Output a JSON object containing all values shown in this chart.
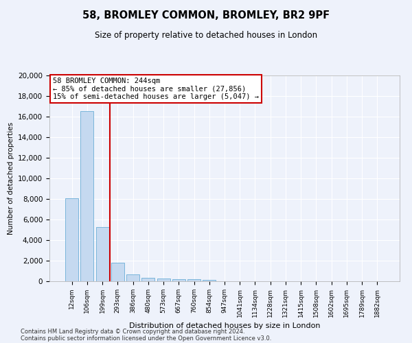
{
  "title": "58, BROMLEY COMMON, BROMLEY, BR2 9PF",
  "subtitle": "Size of property relative to detached houses in London",
  "xlabel": "Distribution of detached houses by size in London",
  "ylabel": "Number of detached properties",
  "bar_color": "#c5d9f0",
  "bar_edge_color": "#6baed6",
  "vline_color": "#cc0000",
  "vline_x_index": 2.5,
  "categories": [
    "12sqm",
    "106sqm",
    "199sqm",
    "293sqm",
    "386sqm",
    "480sqm",
    "573sqm",
    "667sqm",
    "760sqm",
    "854sqm",
    "947sqm",
    "1041sqm",
    "1134sqm",
    "1228sqm",
    "1321sqm",
    "1415sqm",
    "1508sqm",
    "1602sqm",
    "1695sqm",
    "1789sqm",
    "1882sqm"
  ],
  "values": [
    8100,
    16500,
    5300,
    1800,
    700,
    350,
    275,
    200,
    175,
    150,
    0,
    0,
    0,
    0,
    0,
    0,
    0,
    0,
    0,
    0,
    0
  ],
  "ylim": [
    0,
    20000
  ],
  "yticks": [
    0,
    2000,
    4000,
    6000,
    8000,
    10000,
    12000,
    14000,
    16000,
    18000,
    20000
  ],
  "annotation_text": "58 BROMLEY COMMON: 244sqm\n← 85% of detached houses are smaller (27,856)\n15% of semi-detached houses are larger (5,047) →",
  "annotation_box_color": "#ffffff",
  "annotation_box_edge": "#cc0000",
  "footer_line1": "Contains HM Land Registry data © Crown copyright and database right 2024.",
  "footer_line2": "Contains public sector information licensed under the Open Government Licence v3.0.",
  "background_color": "#eef2fb",
  "plot_bg_color": "#eef2fb",
  "grid_color": "#ffffff",
  "title_fontsize": 10.5,
  "subtitle_fontsize": 8.5,
  "ylabel_fontsize": 7.5,
  "xlabel_fontsize": 8.0,
  "tick_fontsize": 7.5,
  "xtick_fontsize": 6.5,
  "annotation_fontsize": 7.5,
  "footer_fontsize": 6.0
}
